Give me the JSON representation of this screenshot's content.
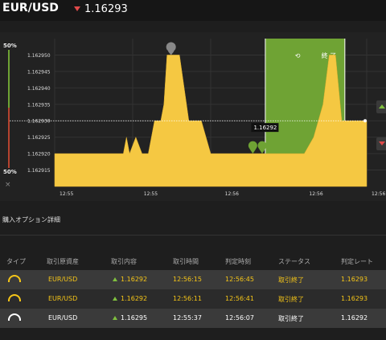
{
  "header": {
    "pair": "EUR/USD",
    "trend_icon": "down-arrow-icon",
    "price": "1.16293",
    "trend_color": "#e04a4a"
  },
  "sidebar_meter": {
    "top_pct": "50%",
    "bottom_pct": "50%",
    "close_label": "×"
  },
  "chart_data": {
    "type": "area",
    "y_ticks": [
      "1.162950",
      "1.162945",
      "1.162940",
      "1.162935",
      "1.162930",
      "1.162925",
      "1.162920",
      "1.162915"
    ],
    "x_ticks": [
      "12:55",
      "12:55",
      "12:56",
      "12:56",
      "12:56",
      "12:56"
    ],
    "ylim": [
      1.16291,
      1.162955
    ],
    "series": [
      {
        "x": [
          0,
          22,
          23,
          24,
          26,
          28,
          30,
          31,
          32,
          34,
          35,
          36,
          40,
          43,
          47,
          50,
          53,
          56,
          57,
          58,
          59,
          60,
          61,
          63,
          65,
          66,
          67,
          68,
          69,
          71,
          74,
          77,
          80,
          83,
          86,
          88,
          90,
          92,
          94,
          96,
          98,
          100
        ],
        "y": [
          1.16292,
          1.16292,
          1.162925,
          1.16292,
          1.162925,
          1.16292,
          1.16292,
          1.162925,
          1.16293,
          1.16293,
          1.162935,
          1.16295,
          1.16295,
          1.16293,
          1.16293,
          1.16292,
          1.16292,
          1.16292,
          1.16292,
          1.16292,
          1.16292,
          1.16292,
          1.16292,
          1.16292,
          1.16292,
          1.16292,
          1.16292,
          1.16292,
          1.16292,
          1.16292,
          1.16292,
          1.16292,
          1.16292,
          1.162925,
          1.162935,
          1.16295,
          1.16295,
          1.16293,
          1.16293,
          1.16293,
          1.16293,
          1.16293
        ]
      }
    ],
    "reference_line": 1.16293,
    "current_label": "1.16292",
    "area_color": "#f5c842",
    "expiry_zone": {
      "label": "終 了",
      "color": "#6fa334"
    }
  },
  "section_title": "購入オプション詳細",
  "table": {
    "headers": [
      "タイプ",
      "取引原資産",
      "取引内容",
      "取引時間",
      "判定時刻",
      "ステータス",
      "判定レート"
    ],
    "rows": [
      {
        "asset": "EUR/USD",
        "content": "1.16292",
        "time": "12:56:15",
        "judge": "12:56:45",
        "status": "取引終了",
        "rate": "1.16293"
      },
      {
        "asset": "EUR/USD",
        "content": "1.16292",
        "time": "12:56:11",
        "judge": "12:56:41",
        "status": "取引終了",
        "rate": "1.16293"
      },
      {
        "asset": "EUR/USD",
        "content": "1.16295",
        "time": "12:55:37",
        "judge": "12:56:07",
        "status": "取引終了",
        "rate": "1.16292"
      }
    ]
  }
}
